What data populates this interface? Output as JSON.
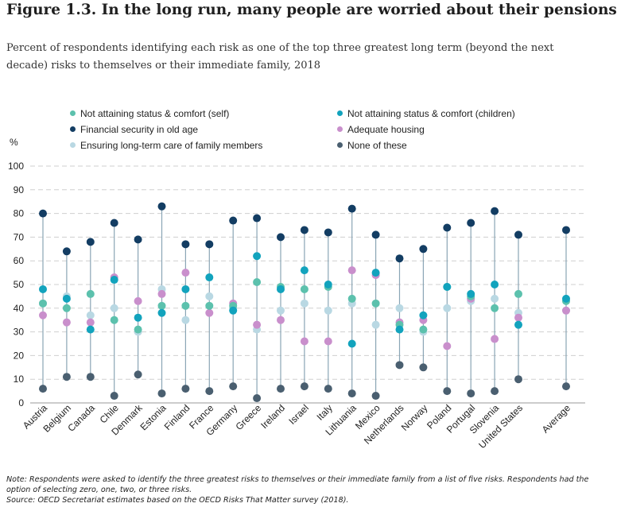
{
  "title": "Figure 1.3. In the long run, many people are worried about their pensions",
  "subtitle": "Percent of respondents identifying each risk as one of the top three greatest long term (beyond the next decade) risks to themselves or their immediate family, 2018",
  "note": "Note: Respondents were asked to identify the three greatest risks to themselves or their immediate family from a list of five risks. Respondents had the option of selecting zero, one, two, or three risks.",
  "source": "Source: OECD Secretariat estimates based on the OECD Risks That Matter survey (2018).",
  "chart_data": {
    "type": "scatter",
    "ylabel": "%",
    "ylim": [
      0,
      100
    ],
    "yticks": [
      0,
      10,
      20,
      30,
      40,
      50,
      60,
      70,
      80,
      90,
      100
    ],
    "grid": "horizontal dashed",
    "legend_position": "top, two columns",
    "categories": [
      "Austria",
      "Belgium",
      "Canada",
      "Chile",
      "Denmark",
      "Estonia",
      "Finland",
      "France",
      "Germany",
      "Greece",
      "Ireland",
      "Israel",
      "Italy",
      "Lithuania",
      "Mexico",
      "Netherlands",
      "Norway",
      "Poland",
      "Portugal",
      "Slovenia",
      "United States",
      "Average"
    ],
    "series": [
      {
        "name": "Not attaining status & comfort (self)",
        "color": "#5cc1ad",
        "values": [
          42,
          40,
          46,
          35,
          31,
          41,
          41,
          41,
          41,
          51,
          49,
          48,
          49,
          44,
          42,
          33,
          31,
          49,
          45,
          40,
          46,
          43
        ]
      },
      {
        "name": "Not attaining status & comfort (children)",
        "color": "#12a3bd",
        "values": [
          48,
          44,
          31,
          52,
          36,
          38,
          48,
          53,
          39,
          62,
          48,
          56,
          50,
          25,
          55,
          31,
          37,
          49,
          46,
          50,
          33,
          44
        ]
      },
      {
        "name": "Financial security in old age",
        "color": "#133d63",
        "values": [
          80,
          64,
          68,
          76,
          69,
          83,
          67,
          67,
          77,
          78,
          70,
          73,
          72,
          82,
          71,
          61,
          65,
          74,
          76,
          81,
          71,
          73
        ]
      },
      {
        "name": "Adequate housing",
        "color": "#c98fcc",
        "values": [
          37,
          34,
          34,
          53,
          43,
          46,
          55,
          38,
          42,
          33,
          35,
          26,
          26,
          56,
          54,
          34,
          35,
          24,
          44,
          27,
          36,
          39
        ]
      },
      {
        "name": "Ensuring long-term care of family members",
        "color": "#b9d8e3",
        "values": [
          42,
          45,
          37,
          40,
          30,
          48,
          35,
          45,
          40,
          31,
          39,
          42,
          39,
          42,
          33,
          40,
          30,
          40,
          43,
          44,
          38,
          39
        ]
      },
      {
        "name": "None of these",
        "color": "#4a5f70",
        "values": [
          6,
          11,
          11,
          3,
          12,
          4,
          6,
          5,
          7,
          2,
          6,
          7,
          6,
          4,
          3,
          16,
          15,
          5,
          4,
          5,
          10,
          7
        ]
      }
    ]
  }
}
